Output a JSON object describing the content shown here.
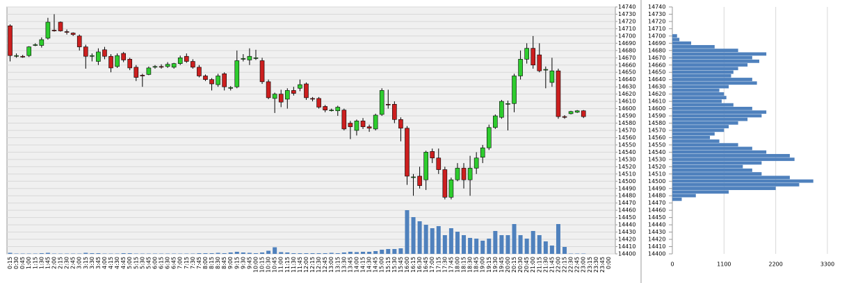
{
  "chart_data": [
    {
      "type": "candlestick",
      "categories": [
        "0:15",
        "0:30",
        "0:45",
        "1:00",
        "1:15",
        "1:30",
        "1:45",
        "2:00",
        "2:15",
        "2:30",
        "2:45",
        "3:00",
        "3:15",
        "3:30",
        "3:45",
        "4:00",
        "4:15",
        "4:30",
        "4:45",
        "5:00",
        "5:15",
        "5:30",
        "5:45",
        "6:00",
        "6:15",
        "6:30",
        "6:45",
        "7:00",
        "7:15",
        "7:30",
        "7:45",
        "8:00",
        "8:15",
        "8:30",
        "8:45",
        "9:00",
        "9:15",
        "9:30",
        "9:45",
        "10:00",
        "10:15",
        "10:30",
        "10:45",
        "11:00",
        "11:15",
        "11:30",
        "11:45",
        "12:00",
        "12:15",
        "12:30",
        "12:45",
        "13:00",
        "13:15",
        "13:30",
        "13:45",
        "14:00",
        "14:15",
        "14:30",
        "14:45",
        "15:00",
        "15:15",
        "15:30",
        "15:45",
        "16:00",
        "16:15",
        "16:30",
        "16:45",
        "17:00",
        "17:15",
        "17:30",
        "17:45",
        "18:00",
        "18:15",
        "18:30",
        "18:45",
        "19:00",
        "19:15",
        "19:30",
        "19:45",
        "20:00",
        "20:15",
        "20:30",
        "20:45",
        "21:00",
        "21:15",
        "21:30",
        "21:45",
        "22:00",
        "22:15",
        "22:30",
        "22:45",
        "23:00",
        "23:15",
        "23:30",
        "23:45",
        "0:00"
      ],
      "open": [
        14714,
        14672,
        14672,
        14673,
        14687,
        14687,
        14697,
        14708,
        14719,
        14706,
        14704,
        14700,
        14685,
        14672,
        14665,
        14681,
        14672,
        14658,
        14676,
        14668,
        14657,
        14646,
        14647,
        14657,
        14658,
        14658,
        14657,
        14662,
        14672,
        14665,
        14657,
        14645,
        14640,
        14633,
        14648,
        14628,
        14630,
        14668,
        14667,
        14670,
        14666,
        14637,
        14614,
        14620,
        14613,
        14625,
        14628,
        14634,
        14614,
        14614,
        14603,
        14598,
        14597,
        14598,
        14580,
        14570,
        14583,
        14575,
        14572,
        14592,
        14606,
        14606,
        14585,
        14573,
        14506,
        14507,
        14502,
        14541,
        14532,
        14516,
        14478,
        14502,
        14518,
        14502,
        14518,
        14533,
        14546,
        14574,
        14588,
        14606,
        14607,
        14645,
        14668,
        14683,
        14674,
        14653,
        14636,
        14652,
        14589,
        14593,
        14595,
        14597,
        null,
        null,
        null,
        null
      ],
      "high": [
        14716,
        14676,
        14674,
        14686,
        14690,
        14698,
        14725,
        14730,
        14720,
        14709,
        14705,
        14702,
        14688,
        14676,
        14683,
        14685,
        14675,
        14676,
        14678,
        14670,
        14660,
        14648,
        14658,
        14660,
        14661,
        14664,
        14663,
        14673,
        14676,
        14668,
        14660,
        14647,
        14642,
        14648,
        14650,
        14631,
        14680,
        14675,
        14683,
        14681,
        14670,
        14640,
        14622,
        14626,
        14628,
        14630,
        14640,
        14636,
        14616,
        14616,
        14605,
        14600,
        14604,
        14600,
        14583,
        14585,
        14587,
        14578,
        14593,
        14628,
        14626,
        14610,
        14588,
        14576,
        14510,
        14520,
        14542,
        14545,
        14545,
        14520,
        14505,
        14525,
        14525,
        14535,
        14540,
        14550,
        14578,
        14592,
        14612,
        14611,
        14648,
        14680,
        14690,
        14700,
        14690,
        14658,
        14670,
        14655,
        14591,
        14597,
        14598,
        14598,
        null,
        null,
        null,
        null
      ],
      "low": [
        14665,
        14670,
        14670,
        14671,
        14686,
        14684,
        14695,
        14706,
        14706,
        14702,
        14700,
        14680,
        14655,
        14665,
        14660,
        14668,
        14650,
        14656,
        14664,
        14653,
        14638,
        14630,
        14646,
        14655,
        14655,
        14656,
        14655,
        14660,
        14663,
        14655,
        14643,
        14638,
        14625,
        14630,
        14625,
        14625,
        14628,
        14665,
        14660,
        14667,
        14634,
        14613,
        14594,
        14602,
        14600,
        14618,
        14624,
        14612,
        14610,
        14600,
        14595,
        14596,
        14590,
        14570,
        14558,
        14563,
        14572,
        14568,
        14570,
        14590,
        14600,
        14580,
        14555,
        14495,
        14480,
        14490,
        14488,
        14525,
        14510,
        14475,
        14475,
        14500,
        14490,
        14480,
        14510,
        14525,
        14543,
        14572,
        14586,
        14570,
        14595,
        14640,
        14662,
        14655,
        14650,
        14628,
        14630,
        14586,
        14586,
        14592,
        14594,
        14587,
        null,
        null,
        null,
        null
      ],
      "close": [
        14673,
        14673,
        14671,
        14685,
        14688,
        14695,
        14719,
        14707,
        14707,
        14705,
        14702,
        14685,
        14672,
        14673,
        14678,
        14672,
        14656,
        14673,
        14667,
        14656,
        14643,
        14645,
        14656,
        14658,
        14657,
        14661,
        14662,
        14670,
        14665,
        14657,
        14645,
        14640,
        14634,
        14645,
        14630,
        14629,
        14666,
        14669,
        14672,
        14670,
        14637,
        14615,
        14620,
        14609,
        14625,
        14621,
        14633,
        14615,
        14613,
        14602,
        14598,
        14598,
        14602,
        14572,
        14575,
        14583,
        14575,
        14573,
        14591,
        14625,
        14605,
        14585,
        14573,
        14507,
        14506,
        14494,
        14540,
        14532,
        14516,
        14478,
        14502,
        14518,
        14502,
        14518,
        14532,
        14546,
        14574,
        14590,
        14610,
        14607,
        14645,
        14668,
        14683,
        14660,
        14652,
        14654,
        14652,
        14589,
        14588,
        14596,
        14597,
        14589,
        null,
        null,
        null,
        null
      ],
      "volume": [
        15,
        5,
        5,
        5,
        5,
        10,
        15,
        5,
        5,
        5,
        5,
        5,
        15,
        10,
        10,
        5,
        5,
        5,
        10,
        10,
        5,
        5,
        5,
        5,
        5,
        5,
        5,
        5,
        5,
        5,
        10,
        10,
        10,
        15,
        10,
        20,
        30,
        20,
        15,
        10,
        20,
        45,
        95,
        25,
        20,
        10,
        10,
        10,
        10,
        10,
        10,
        15,
        10,
        20,
        30,
        25,
        30,
        30,
        40,
        60,
        70,
        70,
        80,
        630,
        530,
        470,
        420,
        370,
        400,
        270,
        370,
        320,
        270,
        230,
        220,
        190,
        220,
        330,
        270,
        270,
        430,
        270,
        220,
        330,
        270,
        180,
        120,
        430,
        100,
        5,
        5,
        5,
        null,
        null,
        null,
        null
      ],
      "up_color": "#2ecc2e",
      "down_color": "#cc1f1f",
      "volume_color": "#4f81bd",
      "ylim": [
        14400,
        14740
      ],
      "yticks": [
        14400,
        14410,
        14420,
        14430,
        14440,
        14450,
        14460,
        14470,
        14480,
        14490,
        14500,
        14510,
        14520,
        14530,
        14540,
        14550,
        14560,
        14570,
        14580,
        14590,
        14600,
        14610,
        14620,
        14630,
        14640,
        14650,
        14660,
        14670,
        14680,
        14690,
        14700,
        14710,
        14720,
        14730,
        14740
      ],
      "grid": true
    },
    {
      "type": "barh",
      "y": [
        14700,
        14695,
        14690,
        14685,
        14680,
        14675,
        14670,
        14665,
        14660,
        14655,
        14650,
        14645,
        14640,
        14635,
        14630,
        14625,
        14620,
        14615,
        14610,
        14605,
        14600,
        14595,
        14590,
        14585,
        14580,
        14575,
        14570,
        14565,
        14560,
        14555,
        14550,
        14545,
        14540,
        14535,
        14530,
        14525,
        14520,
        14515,
        14510,
        14505,
        14500,
        14495,
        14490,
        14485,
        14480,
        14475
      ],
      "values": [
        100,
        150,
        400,
        900,
        1400,
        2000,
        1700,
        1850,
        1600,
        1400,
        1300,
        1250,
        1700,
        1800,
        1200,
        1000,
        1100,
        1150,
        1050,
        1300,
        1700,
        2000,
        1900,
        1600,
        1400,
        1200,
        1100,
        900,
        800,
        1000,
        1400,
        1700,
        2000,
        2500,
        2600,
        1900,
        1500,
        1700,
        1900,
        2500,
        3000,
        2700,
        2200,
        1200,
        500,
        200
      ],
      "color": "#4f81bd",
      "xlim": [
        0,
        3300
      ],
      "xticks": [
        0,
        1100,
        2200,
        3300
      ],
      "ylim": [
        14400,
        14740
      ],
      "yticks": [
        14400,
        14410,
        14420,
        14430,
        14440,
        14450,
        14460,
        14470,
        14480,
        14490,
        14500,
        14510,
        14520,
        14530,
        14540,
        14550,
        14560,
        14570,
        14580,
        14590,
        14600,
        14610,
        14620,
        14630,
        14640,
        14650,
        14660,
        14670,
        14680,
        14690,
        14700,
        14710,
        14720,
        14730,
        14740
      ],
      "grid": true
    }
  ]
}
